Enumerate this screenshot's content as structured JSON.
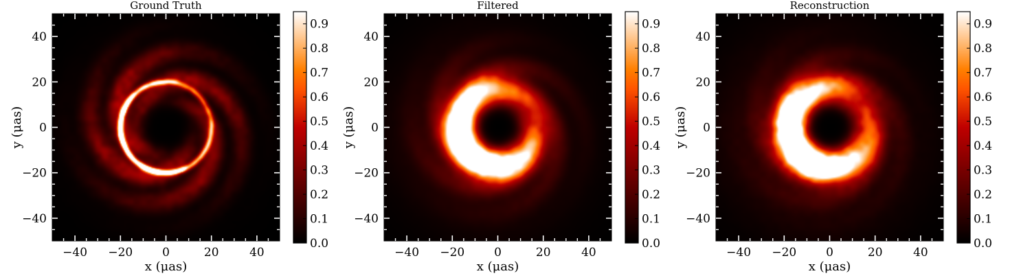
{
  "chart_data": [
    {
      "type": "heatmap",
      "title": "Ground Truth",
      "xlabel": "x (μas)",
      "ylabel": "y (μas)",
      "xlim": [
        -50,
        50
      ],
      "ylim": [
        -50,
        50
      ],
      "xticks": [
        "−40",
        "−20",
        "0",
        "20",
        "40"
      ],
      "yticks": [
        "−40",
        "−20",
        "0",
        "20",
        "40"
      ],
      "xtick_values": [
        -40,
        -20,
        0,
        20,
        40
      ],
      "ytick_values": [
        -40,
        -20,
        0,
        20,
        40
      ],
      "colormap": "gist_heat",
      "colorbar": {
        "range": [
          0,
          0.95
        ],
        "ticks": [
          "0.0",
          "0.1",
          "0.2",
          "0.3",
          "0.4",
          "0.5",
          "0.6",
          "0.7",
          "0.8",
          "0.9"
        ],
        "tick_values": [
          0,
          0.1,
          0.2,
          0.3,
          0.4,
          0.5,
          0.6,
          0.7,
          0.8,
          0.9
        ]
      },
      "image": {
        "ring_radius": 20,
        "ring_width": 1.3,
        "ring_peak": 0.85,
        "bright_side_angle_deg": 200,
        "bright_side_strength": 0.35,
        "shadow_radius": 11,
        "halo_radius": 28,
        "spiral_arms": 0.28,
        "texture": 0.35
      }
    },
    {
      "type": "heatmap",
      "title": "Filtered",
      "xlabel": "x (μas)",
      "ylabel": "y (μas)",
      "xlim": [
        -50,
        50
      ],
      "ylim": [
        -50,
        50
      ],
      "xticks": [
        "−40",
        "−20",
        "0",
        "20",
        "40"
      ],
      "yticks": [
        "−40",
        "−20",
        "0",
        "20",
        "40"
      ],
      "xtick_values": [
        -40,
        -20,
        0,
        20,
        40
      ],
      "ytick_values": [
        -40,
        -20,
        0,
        20,
        40
      ],
      "colormap": "gist_heat",
      "colorbar": {
        "range": [
          0,
          0.95
        ],
        "ticks": [
          "0.0",
          "0.1",
          "0.2",
          "0.3",
          "0.4",
          "0.5",
          "0.6",
          "0.7",
          "0.8",
          "0.9"
        ],
        "tick_values": [
          0,
          0.1,
          0.2,
          0.3,
          0.4,
          0.5,
          0.6,
          0.7,
          0.8,
          0.9
        ]
      },
      "image": {
        "ring_radius": 17,
        "ring_width": 6.5,
        "ring_peak": 0.95,
        "bright_side_angle_deg": 208,
        "bright_side_strength": 0.55,
        "shadow_radius": 8,
        "halo_radius": 34,
        "spiral_arms": 0.12,
        "texture": 0.12
      }
    },
    {
      "type": "heatmap",
      "title": "Reconstruction",
      "xlabel": "x (μas)",
      "ylabel": "y (μas)",
      "xlim": [
        -50,
        50
      ],
      "ylim": [
        -50,
        50
      ],
      "xticks": [
        "−40",
        "−20",
        "0",
        "20",
        "40"
      ],
      "yticks": [
        "−40",
        "−20",
        "0",
        "20",
        "40"
      ],
      "xtick_values": [
        -40,
        -20,
        0,
        20,
        40
      ],
      "ytick_values": [
        -40,
        -20,
        0,
        20,
        40
      ],
      "colormap": "gist_heat",
      "colorbar": {
        "range": [
          0,
          0.95
        ],
        "ticks": [
          "0.0",
          "0.1",
          "0.2",
          "0.3",
          "0.4",
          "0.5",
          "0.6",
          "0.7",
          "0.8",
          "0.9"
        ],
        "tick_values": [
          0,
          0.1,
          0.2,
          0.3,
          0.4,
          0.5,
          0.6,
          0.7,
          0.8,
          0.9
        ]
      },
      "image": {
        "ring_radius": 17.5,
        "ring_width": 6.8,
        "ring_peak": 0.95,
        "bright_side_angle_deg": 210,
        "bright_side_strength": 0.55,
        "shadow_radius": 8.5,
        "halo_radius": 36,
        "spiral_arms": 0.1,
        "texture": 0.18
      }
    }
  ]
}
